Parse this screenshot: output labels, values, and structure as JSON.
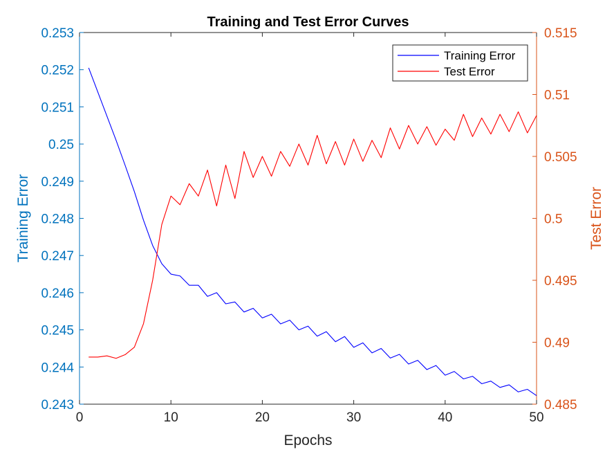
{
  "chart_data": {
    "type": "line",
    "title": "Training and Test Error Curves",
    "xlabel": "Epochs",
    "ylabel_left": "Training Error",
    "ylabel_right": "Test Error",
    "xlim": [
      0,
      50
    ],
    "ylim_left": [
      0.243,
      0.253
    ],
    "ylim_right": [
      0.485,
      0.515
    ],
    "x_ticks": [
      "0",
      "10",
      "20",
      "30",
      "40",
      "50"
    ],
    "y_left_ticks": [
      "0.243",
      "0.244",
      "0.245",
      "0.246",
      "0.247",
      "0.248",
      "0.249",
      "0.25",
      "0.251",
      "0.252",
      "0.253"
    ],
    "y_right_ticks": [
      "0.485",
      "0.49",
      "0.495",
      "0.5",
      "0.505",
      "0.51",
      "0.515"
    ],
    "grid": false,
    "legend_position": "top-right",
    "colors": {
      "left_axis": "#0072BD",
      "right_axis": "#D95319",
      "training": "#0000FF",
      "test": "#FF0000"
    },
    "series": [
      {
        "name": "Training Error",
        "axis": "left",
        "x": [
          1,
          2,
          3,
          4,
          5,
          6,
          7,
          8,
          9,
          10,
          11,
          12,
          13,
          14,
          15,
          16,
          17,
          18,
          19,
          20,
          21,
          22,
          23,
          24,
          25,
          26,
          27,
          28,
          29,
          30,
          31,
          32,
          33,
          34,
          35,
          36,
          37,
          38,
          39,
          40,
          41,
          42,
          43,
          44,
          45,
          46,
          47,
          48,
          49,
          50
        ],
        "y": [
          0.25205,
          0.2514,
          0.25075,
          0.2501,
          0.24942,
          0.24872,
          0.24795,
          0.24727,
          0.24678,
          0.2465,
          0.24645,
          0.2462,
          0.2462,
          0.2459,
          0.246,
          0.2457,
          0.24575,
          0.24548,
          0.24558,
          0.24532,
          0.24542,
          0.24516,
          0.24526,
          0.245,
          0.2451,
          0.24483,
          0.24495,
          0.24468,
          0.24482,
          0.24453,
          0.24465,
          0.24438,
          0.2445,
          0.24424,
          0.24434,
          0.24408,
          0.24418,
          0.24393,
          0.24404,
          0.24378,
          0.24388,
          0.24368,
          0.24375,
          0.24355,
          0.24362,
          0.24345,
          0.24352,
          0.24333,
          0.2434,
          0.24323
        ]
      },
      {
        "name": "Test Error",
        "axis": "right",
        "x": [
          1,
          2,
          3,
          4,
          5,
          6,
          7,
          8,
          9,
          10,
          11,
          12,
          13,
          14,
          15,
          16,
          17,
          18,
          19,
          20,
          21,
          22,
          23,
          24,
          25,
          26,
          27,
          28,
          29,
          30,
          31,
          32,
          33,
          34,
          35,
          36,
          37,
          38,
          39,
          40,
          41,
          42,
          43,
          44,
          45,
          46,
          47,
          48,
          49,
          50
        ],
        "y": [
          0.4888,
          0.4888,
          0.4889,
          0.4887,
          0.489,
          0.4896,
          0.4915,
          0.495,
          0.4995,
          0.5018,
          0.5011,
          0.5028,
          0.5018,
          0.5039,
          0.501,
          0.5043,
          0.5016,
          0.5054,
          0.5033,
          0.505,
          0.5034,
          0.5054,
          0.5042,
          0.506,
          0.5043,
          0.5067,
          0.5044,
          0.5062,
          0.5043,
          0.5064,
          0.5046,
          0.5063,
          0.5049,
          0.5073,
          0.5056,
          0.5075,
          0.506,
          0.5074,
          0.5059,
          0.5072,
          0.5063,
          0.5084,
          0.5066,
          0.5081,
          0.5068,
          0.5084,
          0.507,
          0.5086,
          0.5069,
          0.5083
        ]
      }
    ]
  }
}
